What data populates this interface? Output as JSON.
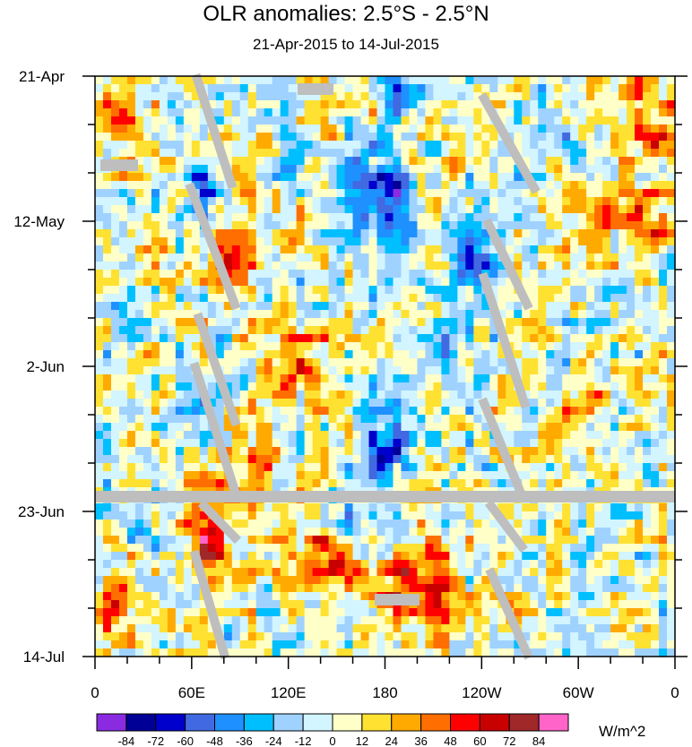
{
  "chart_data": {
    "type": "heatmap",
    "title": "OLR anomalies: 2.5°S - 2.5°N",
    "subtitle": "21-Apr-2015 to 14-Jul-2015",
    "x_ticks": [
      "0",
      "60E",
      "120E",
      "180",
      "120W",
      "60W",
      "0"
    ],
    "y_ticks": [
      "21-Apr",
      "12-May",
      "2-Jun",
      "23-Jun",
      "14-Jul"
    ],
    "xlim_degrees_east": [
      0,
      360
    ],
    "y_range": [
      "21-Apr-2015",
      "14-Jul-2015"
    ],
    "y_direction": "time increases downward",
    "colorbar": {
      "units": "W/m^2",
      "levels": [
        -84,
        -72,
        -60,
        -48,
        -36,
        -24,
        -12,
        0,
        12,
        24,
        36,
        48,
        60,
        72,
        84
      ],
      "colors": [
        "#8a2be2",
        "#000096",
        "#0000cd",
        "#4169e1",
        "#1e90ff",
        "#00bfff",
        "#a0d2ff",
        "#d2f5ff",
        "#ffffc8",
        "#ffe132",
        "#ffaa00",
        "#ff6e00",
        "#ff0000",
        "#c80000",
        "#a02828",
        "#ff64c8"
      ]
    },
    "features": [
      {
        "label": "missing data band",
        "date": "21-Jun-2015",
        "color": "#bebebe"
      }
    ]
  }
}
